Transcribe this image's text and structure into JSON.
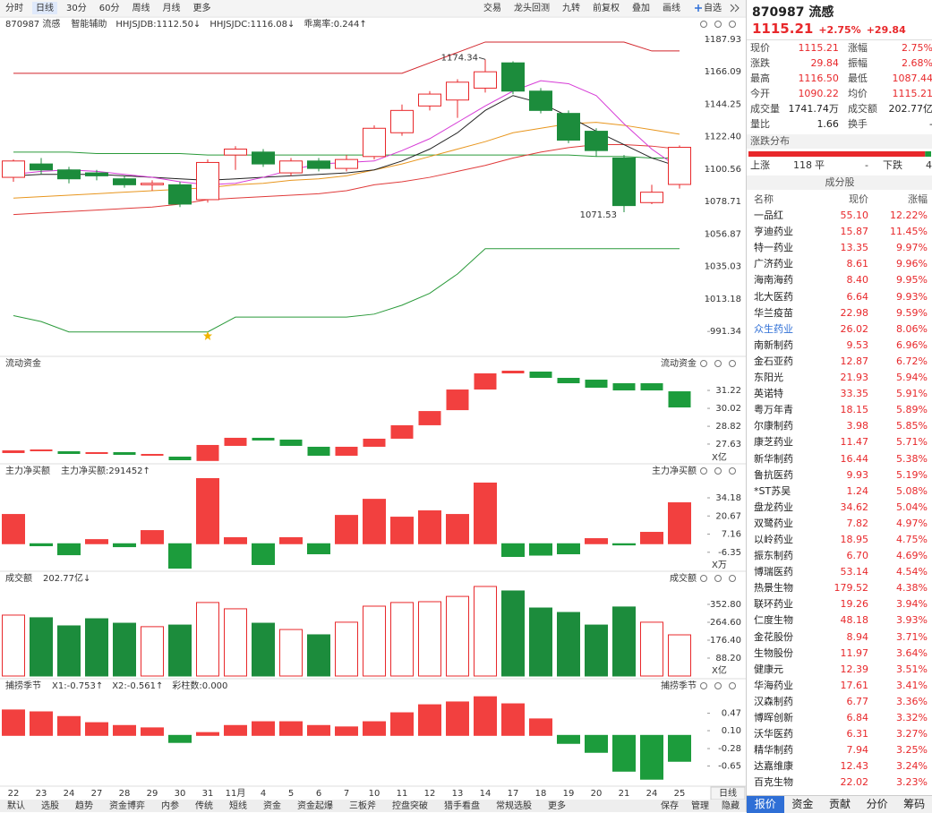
{
  "toolbar": {
    "left": [
      "分时",
      "日线",
      "30分",
      "60分",
      "周线",
      "月线",
      "更多"
    ],
    "right": [
      "交易",
      "龙头回测",
      "九转",
      "前复权",
      "叠加",
      "画线",
      "自选"
    ],
    "period": "日线"
  },
  "chart_data": [
    {
      "type": "candlestick",
      "title": "870987 流感",
      "up_color": "#e8282b",
      "down_color": "#1c8c3c",
      "legend": [
        {
          "text": "智能辅助",
          "color": "#333333"
        },
        {
          "text": "HHJSJDB:1112.50↓",
          "color": "#c8a000"
        },
        {
          "text": "HHJSJDC:1116.08↓",
          "color": "#e0508a"
        },
        {
          "text": "乖离率:0.244↑",
          "color": "#e07000"
        }
      ],
      "categories": [
        "22",
        "23",
        "24",
        "27",
        "28",
        "29",
        "30",
        "31",
        "11月",
        "4",
        "5",
        "6",
        "7",
        "10",
        "11",
        "12",
        "13",
        "14",
        "17",
        "18",
        "19",
        "20",
        "21",
        "24",
        "25"
      ],
      "open": [
        1095,
        1104,
        1100,
        1098,
        1094,
        1090,
        1090,
        1080,
        1110,
        1112,
        1098,
        1106,
        1101,
        1109,
        1125,
        1143,
        1147,
        1155,
        1172,
        1153,
        1138,
        1126,
        1108,
        1078,
        1090.22
      ],
      "close": [
        1106,
        1100,
        1094,
        1096,
        1090,
        1091,
        1077,
        1105,
        1114,
        1104,
        1106,
        1101,
        1107,
        1128,
        1140,
        1151,
        1159,
        1166,
        1153,
        1140,
        1120,
        1113,
        1076,
        1085,
        1115.21
      ],
      "high": [
        1107,
        1108,
        1102,
        1100,
        1096,
        1093,
        1092,
        1107,
        1116,
        1114,
        1108,
        1108,
        1110,
        1130,
        1144,
        1153,
        1161,
        1174.34,
        1173,
        1155,
        1140,
        1128,
        1110,
        1090,
        1116.5
      ],
      "low": [
        1092,
        1097,
        1091,
        1093,
        1088,
        1086,
        1075,
        1078,
        1100,
        1102,
        1096,
        1099,
        1099,
        1107,
        1123,
        1140,
        1135,
        1152,
        1151,
        1138,
        1118,
        1109,
        1071.53,
        1077,
        1087.44
      ],
      "high_label": "1174.34",
      "low_label": "1071.53",
      "series": [
        {
          "color": "#d2252b",
          "values": [
            1165,
            1165,
            1165,
            1165,
            1165,
            1165,
            1165,
            1165,
            1165,
            1165,
            1165,
            1165,
            1165,
            1165,
            1165,
            1172,
            1179,
            1186,
            1186,
            1186,
            1186,
            1186,
            1186,
            1180,
            1180
          ]
        },
        {
          "color": "#2a9a3a",
          "values": [
            1112,
            1112,
            1112,
            1111,
            1111,
            1111,
            1111,
            1110,
            1110,
            1110,
            1110,
            1110,
            1110,
            1110,
            1110,
            1110,
            1110,
            1110,
            1110,
            1110,
            1110,
            1109,
            1109,
            1108,
            1108
          ]
        },
        {
          "color": "#2a9a3a",
          "values": [
            1002,
            998,
            991,
            991,
            991,
            991,
            991,
            991,
            1001,
            1001,
            1001,
            1001,
            1001,
            1003,
            1009,
            1017,
            1030,
            1047,
            1047,
            1047,
            1047,
            1047,
            1047,
            1047,
            1047
          ]
        },
        {
          "color": "#e03a3a",
          "values": [
            1070,
            1071,
            1072,
            1073,
            1074,
            1075,
            1077,
            1080,
            1081,
            1082,
            1083,
            1084,
            1086,
            1090,
            1092,
            1095,
            1099,
            1103,
            1108,
            1112,
            1115,
            1117,
            1117,
            1116,
            1114
          ]
        },
        {
          "color": "#e8961e",
          "values": [
            1081,
            1082,
            1083,
            1084,
            1085,
            1086,
            1087,
            1088,
            1090,
            1091,
            1093,
            1094,
            1096,
            1100,
            1104,
            1109,
            1114,
            1119,
            1125,
            1128,
            1131,
            1132,
            1130,
            1127,
            1124
          ]
        },
        {
          "color": "#222222",
          "values": [
            1096,
            1097,
            1097,
            1097,
            1096,
            1095,
            1094,
            1093,
            1094,
            1095,
            1096,
            1097,
            1098,
            1100,
            1106,
            1114,
            1125,
            1140,
            1150,
            1145,
            1136,
            1126,
            1117,
            1108,
            1102
          ]
        },
        {
          "color": "#d63bd6",
          "values": [
            1097,
            1099,
            1100,
            1099,
            1097,
            1095,
            1092,
            1090,
            1091,
            1095,
            1100,
            1104,
            1105,
            1106,
            1113,
            1121,
            1132,
            1143,
            1153,
            1160,
            1158,
            1150,
            1131,
            1114,
            1101
          ]
        }
      ],
      "ylim": [
        980,
        1192
      ],
      "yticks": [
        1187.93,
        1166.09,
        1144.25,
        {
          "value": 1122.4,
          "label": "1122.40"
        },
        1100.56,
        1078.71,
        1056.87,
        1035.03,
        1013.18,
        991.34
      ]
    },
    {
      "type": "range_bar",
      "title": "流动资金",
      "title_right": "流动资金",
      "unit": "X亿",
      "up_color": "#f2403f",
      "down_color": "#1c9c3c",
      "values": [
        [
          27.03,
          27.21
        ],
        [
          27.15,
          27.27
        ],
        [
          27.15,
          26.97
        ],
        [
          26.97,
          27.09
        ],
        [
          27.09,
          26.91
        ],
        [
          26.85,
          26.97
        ],
        [
          26.79,
          26.55
        ],
        [
          26.5,
          27.57
        ],
        [
          27.51,
          28.05
        ],
        [
          28.05,
          27.87
        ],
        [
          27.93,
          27.51
        ],
        [
          27.45,
          26.85
        ],
        [
          26.85,
          27.45
        ],
        [
          27.45,
          27.99
        ],
        [
          27.99,
          28.89
        ],
        [
          28.89,
          29.84
        ],
        [
          29.9,
          31.28
        ],
        [
          31.28,
          32.36
        ],
        [
          32.36,
          32.54
        ],
        [
          32.48,
          32.06
        ],
        [
          32.06,
          31.7
        ],
        [
          31.94,
          31.4
        ],
        [
          31.7,
          31.22
        ],
        [
          31.7,
          31.22
        ],
        [
          31.16,
          30.08
        ]
      ],
      "ylim": [
        26.37,
        32.66
      ],
      "yticks": [
        31.22,
        30.02,
        28.82,
        27.63
      ]
    },
    {
      "type": "bar",
      "title": "主力净买额",
      "title_right": "主力净买额",
      "unit": "X万",
      "positive_color": "#f2403f",
      "negative_color": "#1c9c3c",
      "legend": [
        {
          "text": "主力净买额:291452↑",
          "color": "#e8282b"
        }
      ],
      "values": [
        21.8,
        -1.5,
        -8.2,
        3.1,
        -2.2,
        9.8,
        -18.2,
        48.5,
        4.5,
        -15.5,
        4.5,
        -7.5,
        21.1,
        33.1,
        19.8,
        24.5,
        21.8,
        45.2,
        -9.5,
        -8.5,
        -7.5,
        3.8,
        -0.9,
        8.5,
        30.5
      ],
      "ylim": [
        -19.82,
        50.18
      ],
      "yticks": [
        34.18,
        20.67,
        7.16,
        -6.35
      ]
    },
    {
      "type": "bar",
      "title": "成交额",
      "title_right": "成交额",
      "unit": "X亿",
      "hollow_color": "#e8282b",
      "legend": [
        {
          "text": "202.77亿↓",
          "color": "#333333"
        }
      ],
      "values": [
        300,
        287,
        247,
        282,
        260,
        243,
        251,
        362,
        331,
        260,
        229,
        203,
        265,
        344,
        362,
        366,
        392,
        441,
        419,
        335,
        313,
        251,
        340,
        265,
        202.77
      ],
      "colors": [
        "#e8282b",
        "#1c8c3c",
        "#1c8c3c",
        "#1c8c3c",
        "#1c8c3c",
        "#e8282b",
        "#1c8c3c",
        "#e8282b",
        "#e8282b",
        "#1c8c3c",
        "#e8282b",
        "#1c8c3c",
        "#e8282b",
        "#e8282b",
        "#e8282b",
        "#e8282b",
        "#e8282b",
        "#e8282b",
        "#1c8c3c",
        "#1c8c3c",
        "#1c8c3c",
        "#1c8c3c",
        "#1c8c3c",
        "#e8282b",
        "#e8282b"
      ],
      "ylim": [
        0,
        463
      ],
      "yticks": [
        {
          "value": 352.8,
          "label": "352.80"
        },
        {
          "value": 264.6,
          "label": "264.60"
        },
        {
          "value": 176.4,
          "label": "176.40"
        },
        {
          "value": 88.2,
          "label": "88.20"
        }
      ]
    },
    {
      "type": "bar",
      "title": "捕捞季节",
      "title_right": "捕捞季节",
      "positive_color": "#f2403f",
      "negative_color": "#1c9c3c",
      "legend": [
        {
          "text": "X1:-0.753↑",
          "color": "#e8961e"
        },
        {
          "text": "X2:-0.561↑",
          "color": "#d63bd6"
        },
        {
          "text": "彩柱数:0.000",
          "color": "#1c9c3c"
        }
      ],
      "values": [
        0.54,
        0.5,
        0.4,
        0.27,
        0.21,
        0.16,
        -0.15,
        0.06,
        0.21,
        0.29,
        0.29,
        0.21,
        0.18,
        0.29,
        0.48,
        0.65,
        0.71,
        0.82,
        0.67,
        0.35,
        -0.17,
        -0.36,
        -0.76,
        -0.93,
        -0.55
      ],
      "ylim": [
        -1.02,
        0.88
      ],
      "yticks": [
        0.47,
        {
          "value": 0.1,
          "label": "0.10"
        },
        -0.28,
        -0.65
      ]
    }
  ],
  "bottom_tabs": {
    "left": [
      "默认",
      "选股",
      "趋势",
      "资金博弈",
      "内参",
      "传统",
      "短线",
      "资金",
      "资金起爆",
      "三板斧",
      "控盘突破",
      "猎手看盘",
      "常规选股",
      "更多"
    ],
    "right": [
      "保存",
      "管理",
      "隐藏"
    ]
  },
  "quote": {
    "code_name": "870987 流感",
    "price": "1115.21",
    "change_pct": "+2.75%",
    "change": "+29.84",
    "rows": [
      [
        "现价",
        "1115.21",
        "涨幅",
        "2.75%"
      ],
      [
        "涨跌",
        "29.84",
        "振幅",
        "2.68%"
      ],
      [
        "最高",
        "1116.50",
        "最低",
        "1087.44"
      ],
      [
        "今开",
        "1090.22",
        "均价",
        "1115.21"
      ],
      [
        "成交量",
        "1741.74万",
        "成交额",
        "202.77亿"
      ],
      [
        "量比",
        "1.66",
        "换手",
        "-"
      ]
    ]
  },
  "distribution": {
    "title": "涨跌分布",
    "up": {
      "label": "上涨",
      "value": 118
    },
    "flat": {
      "label": "平",
      "value": "-"
    },
    "down": {
      "label": "下跌",
      "value": 4
    }
  },
  "constituents": {
    "title": "成分股",
    "columns": [
      "名称",
      "现价",
      "涨幅"
    ],
    "rows": [
      [
        "一品红",
        "55.10",
        "12.22%"
      ],
      [
        "亨迪药业",
        "15.87",
        "11.45%"
      ],
      [
        "特一药业",
        "13.35",
        "9.97%"
      ],
      [
        "广济药业",
        "8.61",
        "9.96%"
      ],
      [
        "海南海药",
        "8.40",
        "9.95%"
      ],
      [
        "北大医药",
        "6.64",
        "9.93%"
      ],
      [
        "华兰疫苗",
        "22.98",
        "9.59%"
      ],
      [
        "众生药业",
        "26.02",
        "8.06%"
      ],
      [
        "南新制药",
        "9.53",
        "6.96%"
      ],
      [
        "金石亚药",
        "12.87",
        "6.72%"
      ],
      [
        "东阳光",
        "21.93",
        "5.94%"
      ],
      [
        "英诺特",
        "33.35",
        "5.91%"
      ],
      [
        "粤万年青",
        "18.15",
        "5.89%"
      ],
      [
        "尔康制药",
        "3.98",
        "5.85%"
      ],
      [
        "康芝药业",
        "11.47",
        "5.71%"
      ],
      [
        "新华制药",
        "16.44",
        "5.38%"
      ],
      [
        "鲁抗医药",
        "9.93",
        "5.19%"
      ],
      [
        "*ST苏吴",
        "1.24",
        "5.08%"
      ],
      [
        "盘龙药业",
        "34.62",
        "5.04%"
      ],
      [
        "双鹭药业",
        "7.82",
        "4.97%"
      ],
      [
        "以岭药业",
        "18.95",
        "4.75%"
      ],
      [
        "振东制药",
        "6.70",
        "4.69%"
      ],
      [
        "博瑞医药",
        "53.14",
        "4.54%"
      ],
      [
        "热景生物",
        "179.52",
        "4.38%"
      ],
      [
        "联环药业",
        "19.26",
        "3.94%"
      ],
      [
        "仁度生物",
        "48.18",
        "3.93%"
      ],
      [
        "金花股份",
        "8.94",
        "3.71%"
      ],
      [
        "生物股份",
        "11.97",
        "3.64%"
      ],
      [
        "健康元",
        "12.39",
        "3.51%"
      ],
      [
        "华海药业",
        "17.61",
        "3.41%"
      ],
      [
        "汉森制药",
        "6.77",
        "3.36%"
      ],
      [
        "博晖创新",
        "6.84",
        "3.32%"
      ],
      [
        "沃华医药",
        "6.31",
        "3.27%"
      ],
      [
        "精华制药",
        "7.94",
        "3.25%"
      ],
      [
        "达嘉维康",
        "12.43",
        "3.24%"
      ],
      [
        "百克生物",
        "22.02",
        "3.23%"
      ]
    ]
  },
  "side_tabs": [
    "报价",
    "资金",
    "贡献",
    "分价",
    "筹码"
  ]
}
